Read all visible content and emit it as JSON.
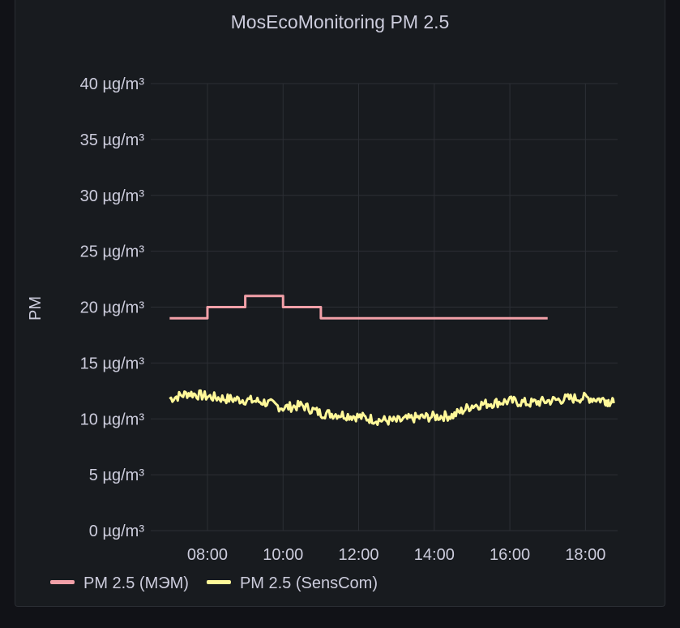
{
  "panel": {
    "title": "MosEcoMonitoring PM 2.5"
  },
  "chart_data": {
    "type": "line",
    "title": "MosEcoMonitoring PM 2.5",
    "ylabel": "PM",
    "xlabel": "",
    "unit": "µg/m³",
    "ylim": [
      0,
      40
    ],
    "xlim_hours": [
      6.5,
      18.85
    ],
    "y_ticks": [
      0,
      5,
      10,
      15,
      20,
      25,
      30,
      35,
      40
    ],
    "y_tick_labels": [
      "0 µg/m³",
      "5 µg/m³",
      "10 µg/m³",
      "15 µg/m³",
      "20 µg/m³",
      "25 µg/m³",
      "30 µg/m³",
      "35 µg/m³",
      "40 µg/m³"
    ],
    "x_tick_labels": [
      "08:00",
      "10:00",
      "12:00",
      "14:00",
      "16:00",
      "18:00"
    ],
    "x_tick_hours": [
      8,
      10,
      12,
      14,
      16,
      18
    ],
    "grid": true,
    "legend_position": "bottom-left",
    "series": [
      {
        "name": "PM 2.5 (МЭМ)",
        "color": "#f2a0a8",
        "step": true,
        "x": [
          "07:00",
          "08:00",
          "09:00",
          "10:00",
          "11:00",
          "12:00",
          "13:00",
          "14:00",
          "15:00",
          "16:00",
          "17:00"
        ],
        "values": [
          19,
          20,
          21,
          20,
          19,
          19,
          19,
          19,
          19,
          19,
          19
        ]
      },
      {
        "name": "PM 2.5 (SensCom)",
        "color": "#fff899",
        "step": false,
        "x": [
          "07:00",
          "07:30",
          "08:00",
          "08:30",
          "09:00",
          "09:30",
          "10:00",
          "10:30",
          "11:00",
          "11:30",
          "12:00",
          "12:30",
          "13:00",
          "13:30",
          "14:00",
          "14:30",
          "15:00",
          "15:30",
          "16:00",
          "16:30",
          "17:00",
          "17:30",
          "18:00",
          "18:30",
          "18:45"
        ],
        "values": [
          11.8,
          12.3,
          12.0,
          11.8,
          11.7,
          11.5,
          11.0,
          11.2,
          10.5,
          10.4,
          10.2,
          9.9,
          9.8,
          10.1,
          10.2,
          10.3,
          11.2,
          11.4,
          11.6,
          11.4,
          11.6,
          11.8,
          11.9,
          11.7,
          11.4
        ]
      }
    ]
  }
}
